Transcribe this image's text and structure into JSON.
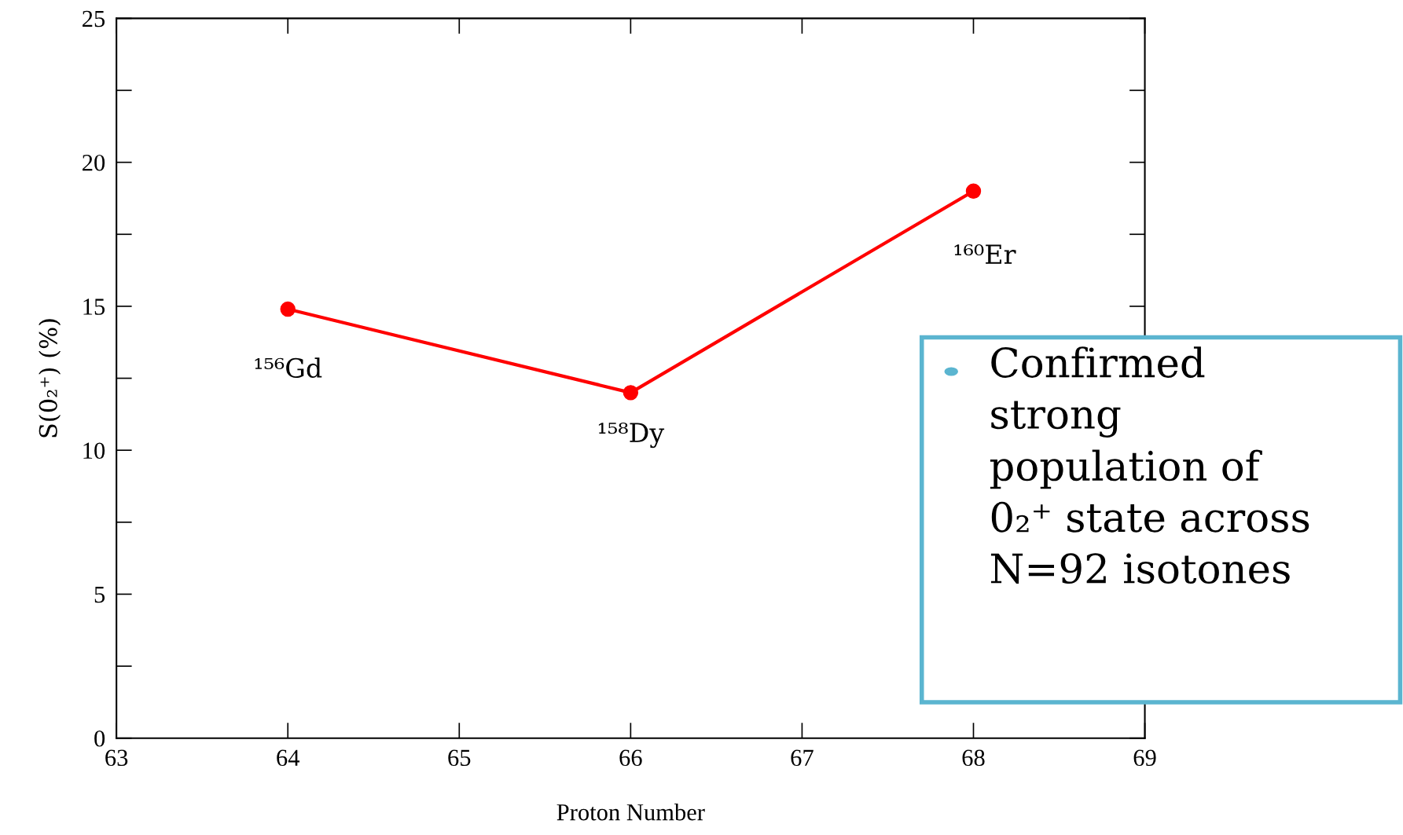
{
  "chart_data": {
    "type": "line",
    "xlabel": "Proton Number",
    "ylabel": "S(0₂⁺) (%)",
    "x": [
      64,
      66,
      68
    ],
    "series": [
      {
        "color": "#ff0000",
        "values": [
          14.9,
          12.0,
          19.0
        ]
      }
    ],
    "marker": "circle",
    "line_style": "solid",
    "grid": false,
    "legend": false,
    "xlim": [
      63,
      69
    ],
    "xticks": [
      63,
      64,
      65,
      66,
      67,
      68,
      69
    ],
    "ylim": [
      0,
      25
    ],
    "yticks": [
      0,
      5,
      10,
      15,
      20,
      25
    ],
    "annotations": [
      {
        "text": "¹⁵⁶Gd",
        "x": 64,
        "y": 14.9
      },
      {
        "text": "¹⁵⁸Dy",
        "x": 66,
        "y": 12.0
      },
      {
        "text": "¹⁶⁰Er",
        "x": 68,
        "y": 19.0
      },
      "Confirmed\nstrong\npopulation of\n0₂⁺ state across\nN=92 isotones"
    ]
  }
}
